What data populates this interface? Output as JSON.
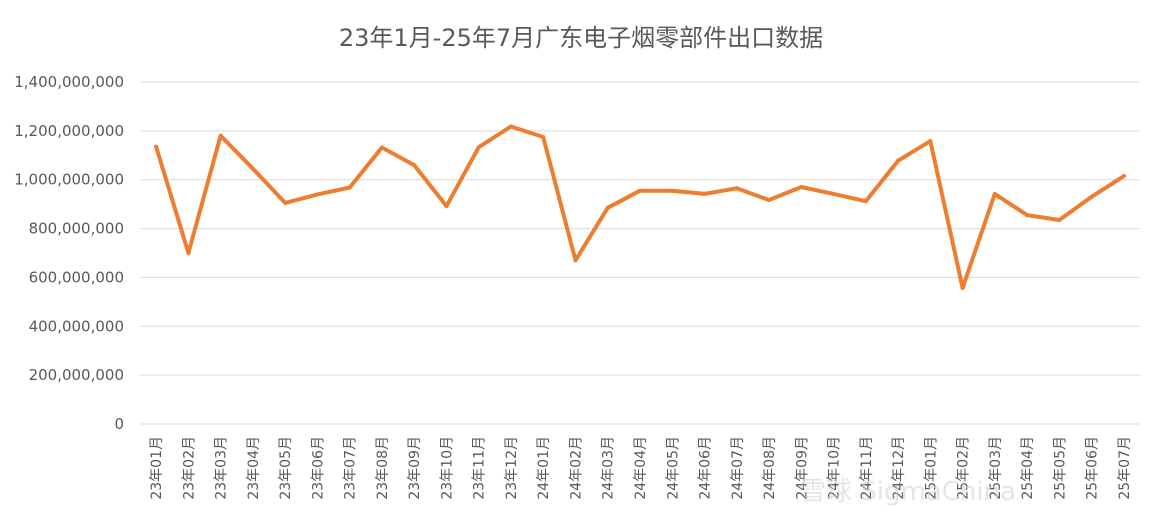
{
  "chart_data": {
    "type": "line",
    "title": "23年1月-25年7月广东电子烟零部件出口数据",
    "categories": [
      "23年01月",
      "23年02月",
      "23年03月",
      "23年04月",
      "23年05月",
      "23年06月",
      "23年07月",
      "23年08月",
      "23年09月",
      "23年10月",
      "23年11月",
      "23年12月",
      "24年01月",
      "24年02月",
      "24年03月",
      "24年04月",
      "24年05月",
      "24年06月",
      "24年07月",
      "24年08月",
      "24年09月",
      "24年10月",
      "24年11月",
      "24年12月",
      "25年01月",
      "25年02月",
      "25年03月",
      "25年04月",
      "25年05月",
      "25年06月",
      "25年07月"
    ],
    "series": [
      {
        "values": [
          1135000000,
          700000000,
          1180000000,
          1045000000,
          905000000,
          940000000,
          968000000,
          1132000000,
          1060000000,
          892000000,
          1133000000,
          1218000000,
          1175000000,
          670000000,
          885000000,
          955000000,
          955000000,
          942000000,
          965000000,
          917000000,
          970000000,
          942000000,
          912000000,
          1078000000,
          1158000000,
          557000000,
          942000000,
          855000000,
          835000000,
          930000000,
          1015000000
        ]
      }
    ],
    "ylim": [
      0,
      1400000000
    ],
    "yticks": [
      0,
      200000000,
      400000000,
      600000000,
      800000000,
      1000000000,
      1200000000,
      1400000000
    ],
    "ytick_labels": [
      "0",
      "200,000,000",
      "400,000,000",
      "600,000,000",
      "800,000,000",
      "1,000,000,000",
      "1,200,000,000",
      "1,400,000,000"
    ],
    "grid": true,
    "line_color": "#ED7D31"
  },
  "watermark": "雪球 SigmaChina"
}
